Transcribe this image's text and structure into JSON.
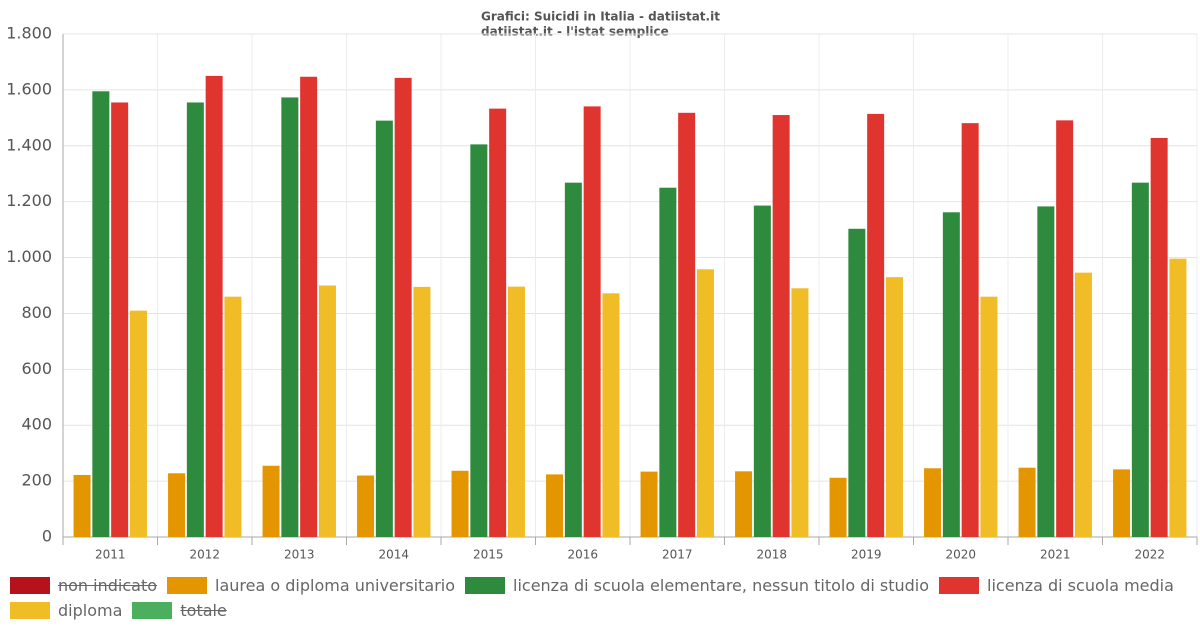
{
  "chart_data": {
    "type": "bar",
    "title": "Grafici: Suicidi in Italia - datiistat.it",
    "subtitle": "datiistat.it - l'istat semplice",
    "categories": [
      "2011",
      "2012",
      "2013",
      "2014",
      "2015",
      "2016",
      "2017",
      "2018",
      "2019",
      "2020",
      "2021",
      "2022"
    ],
    "series": [
      {
        "name": "non indicato",
        "color": "#b5121b",
        "hidden": true
      },
      {
        "name": "laurea o diploma universitario",
        "color": "#e39600",
        "values": [
          222,
          228,
          255,
          220,
          237,
          224,
          234,
          235,
          212,
          246,
          248,
          242
        ]
      },
      {
        "name": "licenza di scuola elementare, nessun titolo di studio",
        "color": "#2e8b3e",
        "values": [
          1595,
          1555,
          1573,
          1490,
          1405,
          1268,
          1250,
          1186,
          1103,
          1162,
          1183,
          1268
        ]
      },
      {
        "name": "licenza di scuola media",
        "color": "#e0352f",
        "values": [
          1555,
          1650,
          1647,
          1643,
          1533,
          1541,
          1518,
          1510,
          1514,
          1481,
          1491,
          1428
        ]
      },
      {
        "name": "diploma",
        "color": "#f0bd27",
        "values": [
          810,
          860,
          900,
          895,
          896,
          872,
          958,
          890,
          930,
          860,
          946,
          996
        ]
      },
      {
        "name": "totale",
        "color": "#4caf5e",
        "hidden": true
      }
    ],
    "ylim": [
      0,
      1800
    ],
    "yticks": [
      0,
      200,
      400,
      600,
      800,
      {
        "value": 1000,
        "label": "1.000"
      },
      {
        "value": 1200,
        "label": "1.200"
      },
      {
        "value": 1400,
        "label": "1.400"
      },
      {
        "value": 1600,
        "label": "1.600"
      },
      {
        "value": 1800,
        "label": "1.800"
      }
    ],
    "grid": true
  }
}
